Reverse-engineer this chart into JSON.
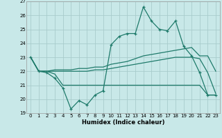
{
  "color": "#1e7a6a",
  "bg_color": "#c8e8e8",
  "grid_color": "#a8cccc",
  "xlabel": "Humidex (Indice chaleur)",
  "ylim": [
    19,
    27
  ],
  "xlim": [
    -0.5,
    23.5
  ],
  "x_obs": [
    0,
    1,
    2,
    3,
    4,
    5,
    6,
    7,
    8,
    9,
    10,
    11,
    12,
    13,
    14,
    15,
    16,
    17,
    18,
    19,
    20,
    21,
    22,
    23
  ],
  "y_obs": [
    23.0,
    22.0,
    21.9,
    21.5,
    20.8,
    19.3,
    19.9,
    19.6,
    20.3,
    20.6,
    23.9,
    24.5,
    24.7,
    24.7,
    26.6,
    25.6,
    25.0,
    24.9,
    25.6,
    23.8,
    23.1,
    21.9,
    20.3,
    20.3
  ],
  "x_top": [
    0,
    1,
    2,
    3,
    4,
    5,
    6,
    7,
    8,
    9,
    10,
    11,
    12,
    13,
    14,
    15,
    16,
    17,
    18,
    19,
    20,
    21,
    22,
    23
  ],
  "y_top": [
    23.0,
    22.0,
    22.0,
    22.1,
    22.1,
    22.1,
    22.2,
    22.2,
    22.3,
    22.3,
    22.5,
    22.6,
    22.7,
    22.9,
    23.1,
    23.2,
    23.3,
    23.4,
    23.5,
    23.6,
    23.7,
    23.1,
    23.1,
    22.0
  ],
  "x_mid": [
    0,
    1,
    2,
    3,
    4,
    5,
    6,
    7,
    8,
    9,
    10,
    11,
    12,
    13,
    14,
    15,
    16,
    17,
    18,
    19,
    20,
    21,
    22,
    23
  ],
  "y_mid": [
    23.0,
    22.0,
    22.0,
    22.0,
    22.0,
    22.0,
    22.0,
    22.0,
    22.1,
    22.1,
    22.2,
    22.3,
    22.4,
    22.5,
    22.6,
    22.7,
    22.8,
    22.9,
    23.0,
    23.0,
    23.0,
    22.9,
    21.9,
    20.4
  ],
  "x_bot": [
    0,
    1,
    2,
    3,
    4,
    5,
    6,
    7,
    8,
    9,
    10,
    11,
    12,
    13,
    14,
    15,
    16,
    17,
    18,
    19,
    20,
    21,
    22,
    23
  ],
  "y_bot": [
    23.0,
    22.0,
    22.0,
    21.8,
    21.0,
    21.0,
    21.0,
    21.0,
    21.0,
    21.0,
    21.0,
    21.0,
    21.0,
    21.0,
    21.0,
    21.0,
    21.0,
    21.0,
    21.0,
    21.0,
    21.0,
    21.0,
    20.3,
    20.3
  ]
}
